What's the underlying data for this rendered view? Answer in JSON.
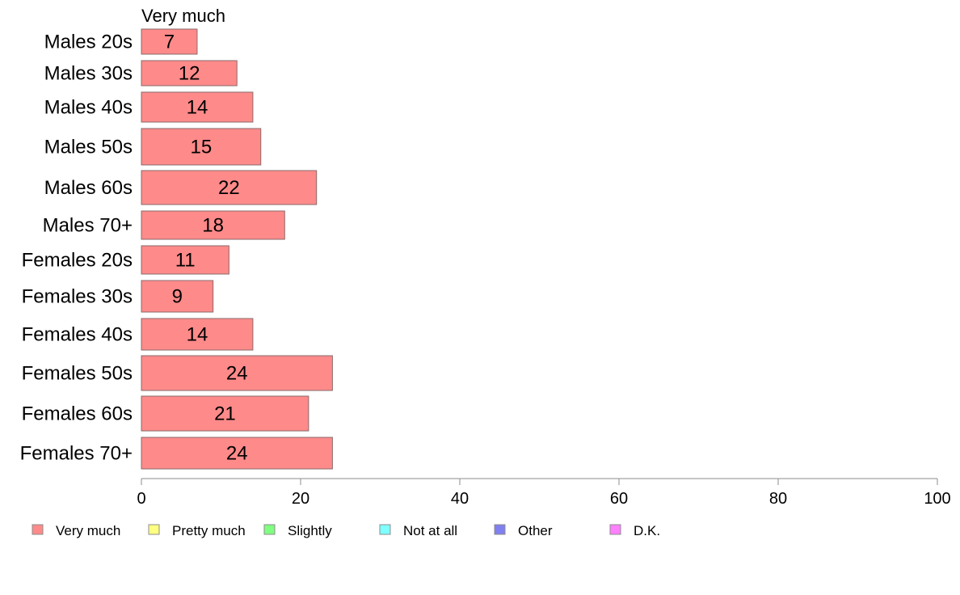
{
  "chart_data": {
    "type": "bar",
    "orientation": "horizontal",
    "title": "",
    "series_title": "Very much",
    "categories": [
      "Males 20s",
      "Males 30s",
      "Males 40s",
      "Males 50s",
      "Males 60s",
      "Males 70+",
      "Females 20s",
      "Females 30s",
      "Females 40s",
      "Females 50s",
      "Females 60s",
      "Females 70+"
    ],
    "series": [
      {
        "name": "Very much",
        "color": "#ff8a8a",
        "values": [
          7,
          12,
          14,
          15,
          22,
          18,
          11,
          9,
          14,
          24,
          21,
          24
        ]
      }
    ],
    "xlim": [
      0,
      100
    ],
    "xticks": [
      0,
      20,
      40,
      60,
      80,
      100
    ],
    "grid": false,
    "legend_position": "bottom",
    "legend": [
      {
        "label": "Very much",
        "color": "#ff8a8a"
      },
      {
        "label": "Pretty much",
        "color": "#ffff80"
      },
      {
        "label": "Slightly",
        "color": "#80ff80"
      },
      {
        "label": "Not at all",
        "color": "#80ffff"
      },
      {
        "label": "Other",
        "color": "#8080f0"
      },
      {
        "label": "D.K.",
        "color": "#ff80ff"
      }
    ]
  }
}
